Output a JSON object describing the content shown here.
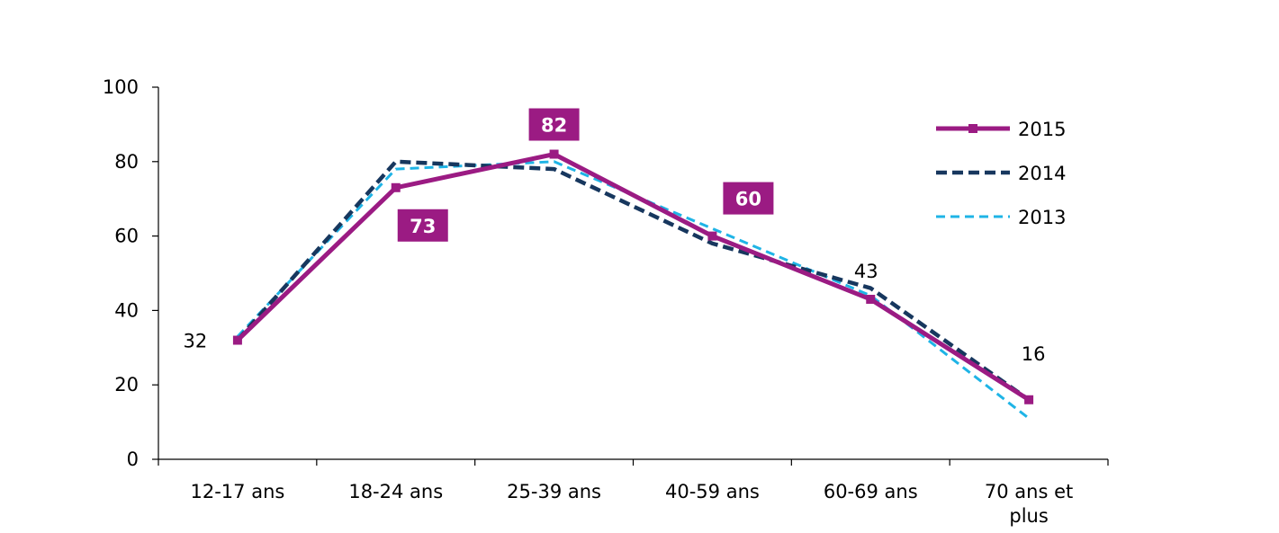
{
  "chart_data": {
    "type": "line",
    "categories": [
      "12-17 ans",
      "18-24 ans",
      "25-39 ans",
      "40-59 ans",
      "60-69 ans",
      "70 ans et plus"
    ],
    "category_lines": [
      [
        "12-17 ans"
      ],
      [
        "18-24 ans"
      ],
      [
        "25-39 ans"
      ],
      [
        "40-59 ans"
      ],
      [
        "60-69 ans"
      ],
      [
        "70 ans et",
        "plus"
      ]
    ],
    "ylim": [
      0,
      100
    ],
    "yticks": [
      "0",
      "20",
      "40",
      "60",
      "80",
      "100"
    ],
    "grid": false,
    "legend_position": "top-right",
    "series": [
      {
        "name": "2015",
        "values": [
          32,
          73,
          82,
          60,
          43,
          16
        ],
        "color": "#9b1b83",
        "style": "solid",
        "markers": true
      },
      {
        "name": "2014",
        "values": [
          32,
          80,
          78,
          58,
          46,
          16
        ],
        "color": "#17375e",
        "style": "dashed",
        "markers": false
      },
      {
        "name": "2013",
        "values": [
          33,
          78,
          80,
          62,
          44,
          11
        ],
        "color": "#1fb4e6",
        "style": "dashed",
        "markers": false
      }
    ],
    "data_labels": [
      {
        "text": "32",
        "category_index": 0,
        "boxed": false
      },
      {
        "text": "73",
        "category_index": 1,
        "boxed": true
      },
      {
        "text": "82",
        "category_index": 2,
        "boxed": true
      },
      {
        "text": "60",
        "category_index": 3,
        "boxed": true
      },
      {
        "text": "43",
        "category_index": 4,
        "boxed": false
      },
      {
        "text": "16",
        "category_index": 5,
        "boxed": false
      }
    ]
  }
}
